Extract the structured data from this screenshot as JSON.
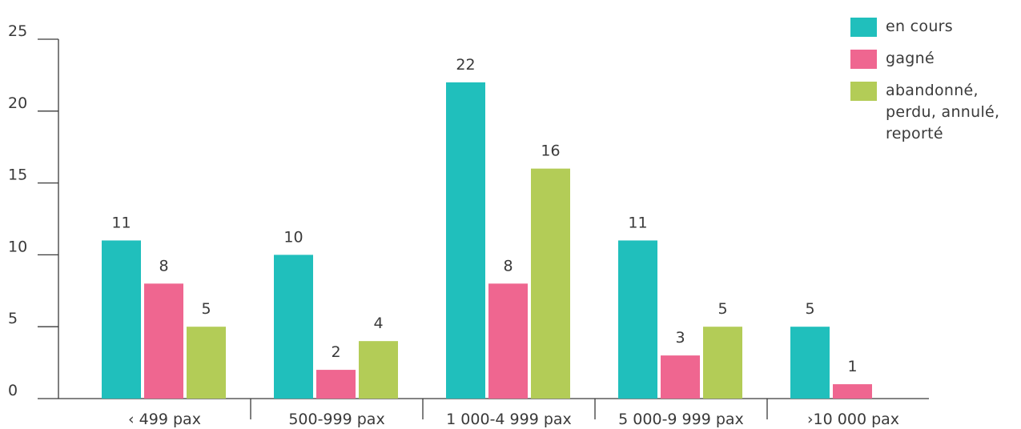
{
  "chart_data": {
    "type": "bar",
    "categories": [
      "‹ 499 pax",
      "500-999 pax",
      "1 000-4 999 pax",
      "5 000-9 999 pax",
      "›10 000 pax"
    ],
    "series": [
      {
        "name": "en cours",
        "color": "#20bfbc",
        "values": [
          11,
          10,
          22,
          11,
          5
        ]
      },
      {
        "name": "gagné",
        "color": "#ef6690",
        "values": [
          8,
          2,
          8,
          3,
          1
        ]
      },
      {
        "name": "abandonné,\nperdu, annulé,\nreporté",
        "color": "#b3cc57",
        "values": [
          5,
          4,
          16,
          5,
          null
        ]
      }
    ],
    "yticks": [
      0,
      5,
      10,
      15,
      20,
      25
    ],
    "ylim": [
      0,
      25
    ],
    "legend_position": "top-right",
    "grid": false
  }
}
